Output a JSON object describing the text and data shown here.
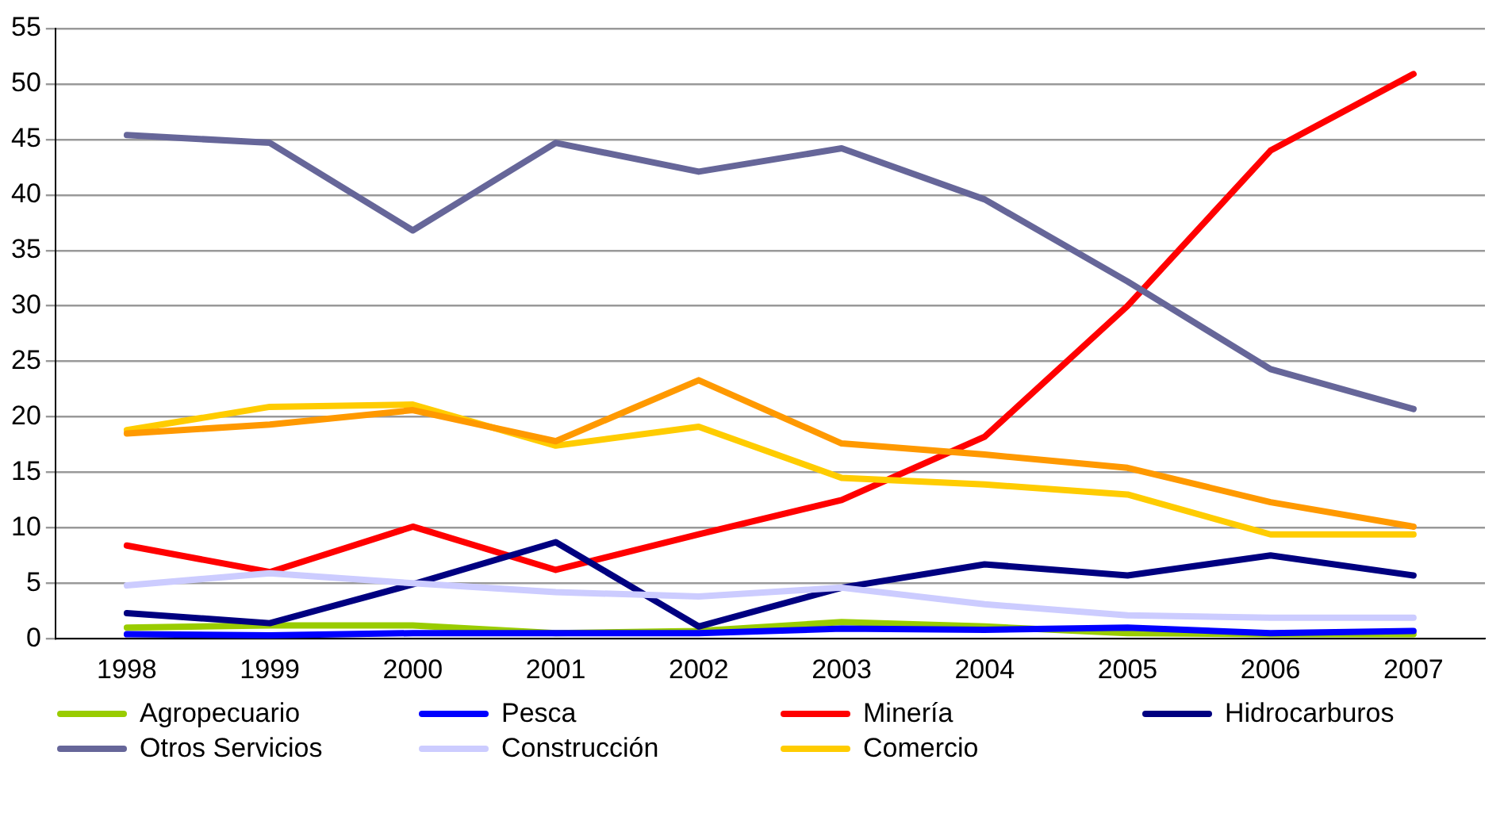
{
  "chart_data": {
    "type": "line",
    "categories": [
      "1998",
      "1999",
      "2000",
      "2001",
      "2002",
      "2003",
      "2004",
      "2005",
      "2006",
      "2007"
    ],
    "series": [
      {
        "name": "Agropecuario",
        "color": "#99cc00",
        "values": [
          1.0,
          1.2,
          1.2,
          0.5,
          0.7,
          1.5,
          1.1,
          0.5,
          0.4,
          0.4
        ]
      },
      {
        "name": "Pesca",
        "color": "#0000ff",
        "values": [
          0.4,
          0.3,
          0.5,
          0.5,
          0.5,
          0.9,
          0.8,
          1.0,
          0.5,
          0.7
        ]
      },
      {
        "name": "Minería",
        "color": "#ff0000",
        "values": [
          8.4,
          6.0,
          10.1,
          6.2,
          9.4,
          12.5,
          18.2,
          30.0,
          44.0,
          50.9
        ]
      },
      {
        "name": "Hidrocarburos",
        "color": "#000080",
        "values": [
          2.3,
          1.4,
          4.9,
          8.7,
          1.1,
          4.6,
          6.7,
          5.7,
          7.5,
          5.7
        ]
      },
      {
        "name": "Otros Servicios",
        "color": "#666699",
        "values": [
          45.4,
          44.7,
          36.8,
          44.7,
          42.1,
          44.2,
          39.6,
          32.2,
          24.3,
          20.7
        ]
      },
      {
        "name": "Construcción",
        "color": "#ccccff",
        "values": [
          4.8,
          5.9,
          5.0,
          4.2,
          3.8,
          4.6,
          3.1,
          2.1,
          1.9,
          1.9
        ]
      },
      {
        "name": "Comercio",
        "color": "#ffcc00",
        "values": [
          18.8,
          20.9,
          21.1,
          17.4,
          19.1,
          14.5,
          13.9,
          13.0,
          9.4,
          9.4
        ]
      },
      {
        "color": "#ff9900",
        "values": [
          18.5,
          19.3,
          20.6,
          17.8,
          23.3,
          17.6,
          16.6,
          15.4,
          12.3,
          10.1
        ]
      }
    ],
    "ylim": [
      0,
      55
    ],
    "yticks": [
      0,
      5,
      10,
      15,
      20,
      25,
      30,
      35,
      40,
      45,
      50,
      55
    ],
    "grid": "y",
    "legend": "bottom",
    "marker": "none",
    "line_style": "solid"
  }
}
